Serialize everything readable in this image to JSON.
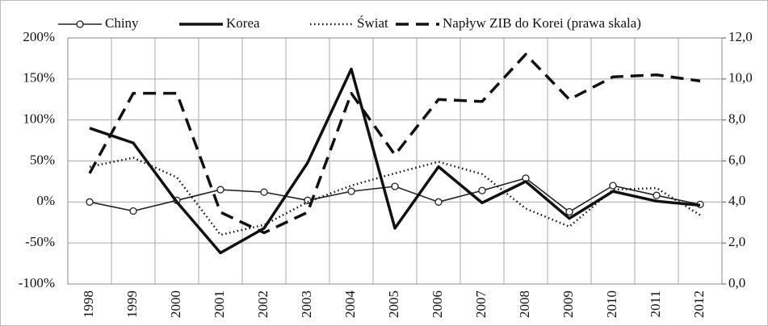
{
  "chart_data": {
    "type": "line",
    "categories": [
      "1998",
      "1999",
      "2000",
      "2001",
      "2002",
      "2003",
      "2004",
      "2005",
      "2006",
      "2007",
      "2008",
      "2009",
      "2010",
      "2011",
      "2012"
    ],
    "series": [
      {
        "name": "Chiny",
        "color": "#222222",
        "style": "solid",
        "marker": "circle",
        "values": [
          0,
          -11,
          2,
          15,
          12,
          2,
          13,
          19,
          0,
          14,
          29,
          -12,
          20,
          8,
          -3
        ]
      },
      {
        "name": "Korea",
        "color": "#111111",
        "style": "thick",
        "values": [
          90,
          72,
          0,
          -62,
          -32,
          48,
          162,
          -32,
          43,
          -1,
          25,
          -20,
          13,
          1,
          -4
        ]
      },
      {
        "name": "Świat",
        "color": "#111111",
        "style": "dotted",
        "values": [
          43,
          54,
          30,
          -40,
          -28,
          0,
          20,
          35,
          49,
          34,
          -8,
          -30,
          15,
          17,
          -16
        ]
      },
      {
        "name": "Napływ ZIB do Korei (prawa skala)",
        "color": "#111111",
        "style": "dashed",
        "axis": "y2",
        "values": [
          5.4,
          9.3,
          9.3,
          3.5,
          2.5,
          3.5,
          9.3,
          6.3,
          9.0,
          8.9,
          11.2,
          9.0,
          10.1,
          10.2,
          9.9
        ]
      }
    ],
    "ylim": [
      -100,
      200
    ],
    "yticks": [
      {
        "value": -100,
        "label": "-100%"
      },
      {
        "value": -50,
        "label": "-50%"
      },
      {
        "value": 0,
        "label": "0%"
      },
      {
        "value": 50,
        "label": "50%"
      },
      {
        "value": 100,
        "label": "100%"
      },
      {
        "value": 150,
        "label": "150%"
      },
      {
        "value": 200,
        "label": "200%"
      }
    ],
    "y2lim": [
      0,
      12
    ],
    "y2ticks": [
      {
        "value": 0,
        "label": "0,0"
      },
      {
        "value": 2,
        "label": "2,0"
      },
      {
        "value": 4,
        "label": "4,0"
      },
      {
        "value": 6,
        "label": "6,0"
      },
      {
        "value": 8,
        "label": "8,0"
      },
      {
        "value": 10,
        "label": "10,0"
      },
      {
        "value": 12,
        "label": "12,0"
      }
    ],
    "grid": true,
    "legend": "top"
  }
}
